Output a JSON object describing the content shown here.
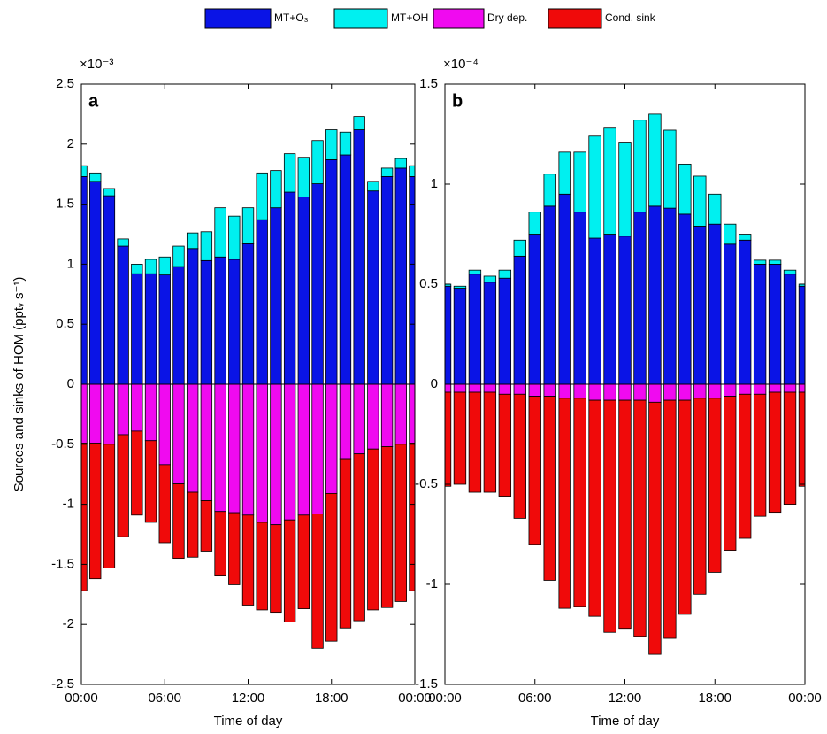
{
  "chart_data": [
    {
      "type": "bar",
      "stacked": true,
      "panel_label": "a",
      "multiplier": "×10⁻³",
      "ylabel": "Sources and sinks of HOM (pptᵥ s⁻¹)",
      "xlabel": "Time of day",
      "x": [
        0,
        1,
        2,
        3,
        4,
        5,
        6,
        7,
        8,
        9,
        10,
        11,
        12,
        13,
        14,
        15,
        16,
        17,
        18,
        19,
        20,
        21,
        22,
        23,
        24
      ],
      "xlim": [
        0,
        24
      ],
      "xticks": [
        {
          "value": 0,
          "label": "00:00"
        },
        {
          "value": 6,
          "label": "06:00"
        },
        {
          "value": 12,
          "label": "12:00"
        },
        {
          "value": 18,
          "label": "18:00"
        },
        {
          "value": 24,
          "label": "00:00"
        }
      ],
      "ylim": [
        -2.5,
        2.5
      ],
      "yticks": [
        -2.5,
        -2,
        -1.5,
        -1,
        -0.5,
        0,
        0.5,
        1,
        1.5,
        2,
        2.5
      ],
      "series": [
        {
          "name": "MT+O₃",
          "color": "#0a14e6",
          "values": [
            1.73,
            1.69,
            1.57,
            1.15,
            0.92,
            0.92,
            0.91,
            0.98,
            1.13,
            1.03,
            1.06,
            1.04,
            1.17,
            1.37,
            1.47,
            1.6,
            1.56,
            1.67,
            1.87,
            1.91,
            2.12,
            1.61,
            1.73,
            1.8,
            1.73
          ]
        },
        {
          "name": "MT+OH",
          "color": "#00f0f0",
          "values": [
            0.09,
            0.07,
            0.06,
            0.06,
            0.08,
            0.12,
            0.15,
            0.17,
            0.13,
            0.24,
            0.41,
            0.36,
            0.3,
            0.39,
            0.31,
            0.32,
            0.33,
            0.36,
            0.25,
            0.19,
            0.11,
            0.08,
            0.07,
            0.08,
            0.09
          ]
        },
        {
          "name": "Dry dep.",
          "color": "#f00af0",
          "values": [
            -0.49,
            -0.49,
            -0.5,
            -0.42,
            -0.39,
            -0.47,
            -0.67,
            -0.83,
            -0.9,
            -0.97,
            -1.06,
            -1.07,
            -1.09,
            -1.15,
            -1.17,
            -1.13,
            -1.09,
            -1.08,
            -0.91,
            -0.62,
            -0.58,
            -0.54,
            -0.52,
            -0.5,
            -0.49
          ]
        },
        {
          "name": "Cond. sink",
          "color": "#f00a0a",
          "values": [
            -1.23,
            -1.13,
            -1.03,
            -0.85,
            -0.7,
            -0.68,
            -0.65,
            -0.62,
            -0.54,
            -0.42,
            -0.53,
            -0.6,
            -0.75,
            -0.73,
            -0.73,
            -0.85,
            -0.78,
            -1.12,
            -1.23,
            -1.41,
            -1.39,
            -1.34,
            -1.34,
            -1.31,
            -1.23
          ]
        }
      ]
    },
    {
      "type": "bar",
      "stacked": true,
      "panel_label": "b",
      "multiplier": "×10⁻⁴",
      "xlabel": "Time of day",
      "x": [
        0,
        1,
        2,
        3,
        4,
        5,
        6,
        7,
        8,
        9,
        10,
        11,
        12,
        13,
        14,
        15,
        16,
        17,
        18,
        19,
        20,
        21,
        22,
        23,
        24
      ],
      "xlim": [
        0,
        24
      ],
      "xticks": [
        {
          "value": 0,
          "label": "00:00"
        },
        {
          "value": 6,
          "label": "06:00"
        },
        {
          "value": 12,
          "label": "12:00"
        },
        {
          "value": 18,
          "label": "18:00"
        },
        {
          "value": 24,
          "label": "00:00"
        }
      ],
      "ylim": [
        -1.5,
        1.5
      ],
      "yticks": [
        -1.5,
        -1,
        -0.5,
        0,
        0.5,
        1,
        1.5
      ],
      "series": [
        {
          "color": "#0a14e6",
          "values": [
            0.49,
            0.48,
            0.55,
            0.51,
            0.53,
            0.64,
            0.75,
            0.89,
            0.95,
            0.86,
            0.73,
            0.75,
            0.74,
            0.86,
            0.89,
            0.88,
            0.85,
            0.79,
            0.8,
            0.7,
            0.72,
            0.6,
            0.6,
            0.55,
            0.49
          ]
        },
        {
          "color": "#00f0f0",
          "values": [
            0.01,
            0.01,
            0.02,
            0.03,
            0.04,
            0.08,
            0.11,
            0.16,
            0.21,
            0.3,
            0.51,
            0.53,
            0.47,
            0.46,
            0.46,
            0.39,
            0.25,
            0.25,
            0.15,
            0.1,
            0.03,
            0.02,
            0.02,
            0.02,
            0.01
          ]
        },
        {
          "color": "#f00af0",
          "values": [
            -0.04,
            -0.04,
            -0.04,
            -0.04,
            -0.05,
            -0.05,
            -0.06,
            -0.06,
            -0.07,
            -0.07,
            -0.08,
            -0.08,
            -0.08,
            -0.08,
            -0.09,
            -0.08,
            -0.08,
            -0.07,
            -0.07,
            -0.06,
            -0.05,
            -0.05,
            -0.04,
            -0.04,
            -0.04
          ]
        },
        {
          "color": "#f00a0a",
          "values": [
            -0.47,
            -0.46,
            -0.5,
            -0.5,
            -0.51,
            -0.62,
            -0.74,
            -0.92,
            -1.05,
            -1.04,
            -1.08,
            -1.16,
            -1.14,
            -1.18,
            -1.26,
            -1.19,
            -1.07,
            -0.98,
            -0.87,
            -0.77,
            -0.72,
            -0.61,
            -0.6,
            -0.56,
            -0.47
          ]
        }
      ]
    }
  ]
}
